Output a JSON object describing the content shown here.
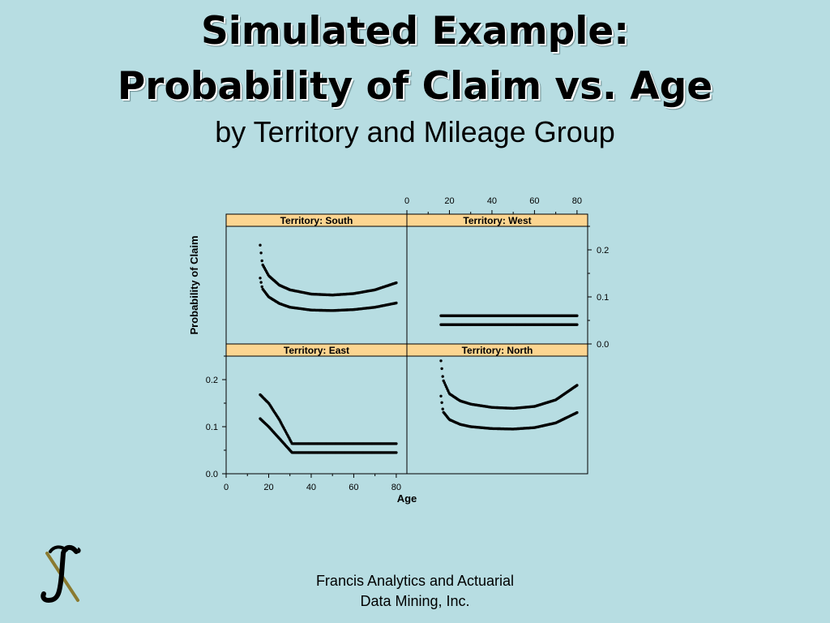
{
  "slide": {
    "title_line1": "Simulated Example:",
    "title_line2": "Probability of Claim vs. Age",
    "subtitle": "by Territory and Mileage Group",
    "footer_line1": "Francis Analytics and Actuarial",
    "footer_line2": "Data Mining, Inc."
  },
  "colors": {
    "background": "#b7dde2",
    "strip": "#fcd591",
    "points": "#000000"
  },
  "chart_data": {
    "type": "scatter",
    "xlabel": "Age",
    "ylabel": "Probability of Claim",
    "xlim": [
      0,
      85
    ],
    "ylim": [
      0,
      0.25
    ],
    "x_ticks": [
      "0",
      "20",
      "40",
      "60",
      "80"
    ],
    "y_ticks": [
      "0.0",
      "0.1",
      "0.2"
    ],
    "panels": [
      {
        "name": "Territory: South",
        "position": "top-left",
        "series": [
          {
            "x": [
              16,
              17,
              20,
              25,
              30,
              40,
              50,
              60,
              70,
              80
            ],
            "y": [
              0.21,
              0.17,
              0.145,
              0.125,
              0.115,
              0.106,
              0.104,
              0.107,
              0.115,
              0.13
            ]
          },
          {
            "x": [
              16,
              17,
              20,
              25,
              30,
              40,
              50,
              60,
              70,
              80
            ],
            "y": [
              0.14,
              0.118,
              0.1,
              0.086,
              0.078,
              0.072,
              0.071,
              0.073,
              0.078,
              0.087
            ]
          }
        ]
      },
      {
        "name": "Territory: West",
        "position": "top-right",
        "series": [
          {
            "x": [
              16,
              80
            ],
            "y": [
              0.06,
              0.06
            ]
          },
          {
            "x": [
              16,
              80
            ],
            "y": [
              0.041,
              0.041
            ]
          }
        ]
      },
      {
        "name": "Territory: East",
        "position": "bottom-left",
        "series": [
          {
            "x": [
              16,
              20,
              25,
              31,
              40,
              50,
              60,
              70,
              80
            ],
            "y": [
              0.168,
              0.15,
              0.115,
              0.064,
              0.064,
              0.064,
              0.064,
              0.064,
              0.064
            ]
          },
          {
            "x": [
              16,
              20,
              25,
              31,
              40,
              50,
              60,
              70,
              80
            ],
            "y": [
              0.117,
              0.1,
              0.075,
              0.045,
              0.045,
              0.045,
              0.045,
              0.045,
              0.045
            ]
          }
        ]
      },
      {
        "name": "Territory: North",
        "position": "bottom-right",
        "series": [
          {
            "x": [
              16,
              17,
              20,
              25,
              30,
              40,
              50,
              60,
              70,
              80
            ],
            "y": [
              0.24,
              0.2,
              0.17,
              0.155,
              0.148,
              0.141,
              0.139,
              0.143,
              0.157,
              0.188
            ]
          },
          {
            "x": [
              16,
              17,
              20,
              25,
              30,
              40,
              50,
              60,
              70,
              80
            ],
            "y": [
              0.165,
              0.132,
              0.115,
              0.105,
              0.1,
              0.096,
              0.095,
              0.098,
              0.108,
              0.13
            ]
          }
        ]
      }
    ]
  }
}
